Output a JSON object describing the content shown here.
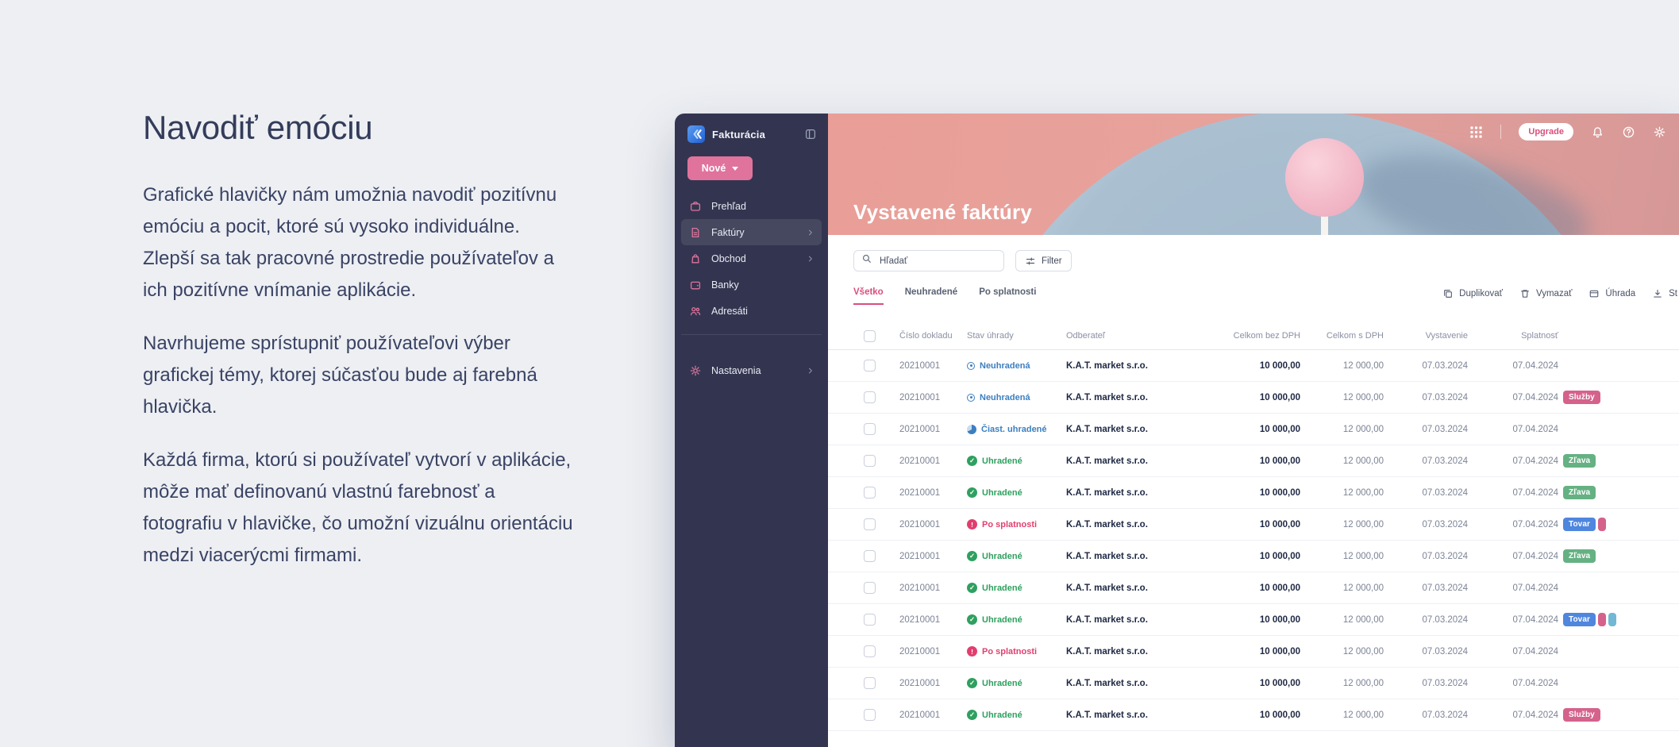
{
  "intro": {
    "heading": "Navodiť emóciu",
    "paragraphs": [
      "Grafické hlavičky nám umožnia navodiť pozitívnu emóciu a pocit, ktoré sú vysoko individuálne. Zlepší sa tak pracovné prostredie používateľov a ich pozitívne vnímanie aplikácie.",
      "Navrhujeme sprístupniť používateľovi výber grafickej témy, ktorej súčasťou bude aj farebná hlavička.",
      "Každá firma, ktorú si používateľ vytvorí v aplikácie, môže mať definovanú vlastnú farebnosť a fotografiu v hlavičke, čo umožní vizuálnu orientáciu medzi viacerýcmi firmami."
    ]
  },
  "app": {
    "name": "Fakturácia",
    "colors": {
      "accent_pink": "#e0739c",
      "tab_pink": "#d94f7e",
      "sidebar_bg": "#333550",
      "status_blue": "#3c7fc0",
      "status_green": "#2fa05f",
      "status_red": "#e13e6f"
    },
    "sidebar": {
      "new_button": {
        "label": "Nové",
        "icon": "caret-down-icon"
      },
      "items": [
        {
          "label": "Prehľad",
          "icon": "overview-icon",
          "chevron": false,
          "active": false
        },
        {
          "label": "Faktúry",
          "icon": "invoices-icon",
          "chevron": true,
          "active": true
        },
        {
          "label": "Obchod",
          "icon": "shop-icon",
          "chevron": true,
          "active": false
        },
        {
          "label": "Banky",
          "icon": "banks-icon",
          "chevron": false,
          "active": false
        },
        {
          "label": "Adresáti",
          "icon": "contacts-icon",
          "chevron": false,
          "active": false
        }
      ],
      "settings": {
        "label": "Nastavenia",
        "icon": "settings-icon",
        "chevron": true
      }
    },
    "header": {
      "title": "Vystavené faktúry",
      "upgrade_label": "Upgrade",
      "icons_left_of_upgrade": [
        "apps-grid-icon"
      ],
      "icons_right_of_upgrade": [
        "bell-icon",
        "help-icon",
        "gear-icon"
      ]
    },
    "toolbar": {
      "search_placeholder": "Hľadať",
      "filter_label": "Filter"
    },
    "tabs": [
      {
        "label": "Všetko",
        "active": true
      },
      {
        "label": "Neuhradené",
        "active": false
      },
      {
        "label": "Po splatnosti",
        "active": false
      }
    ],
    "actions": [
      {
        "label": "Duplikovať",
        "icon": "copy-icon"
      },
      {
        "label": "Vymazať",
        "icon": "trash-icon"
      },
      {
        "label": "Úhrada",
        "icon": "payment-icon"
      },
      {
        "label": "St",
        "icon": "download-icon"
      }
    ],
    "table": {
      "columns": [
        "Číslo dokladu",
        "Stav úhrady",
        "Odberateľ",
        "Celkom bez DPH",
        "Celkom s DPH",
        "Vystavenie",
        "Splatnosť"
      ],
      "statuses": {
        "neuhradena": {
          "label": "Neuhradená",
          "color": "#3c7fc0",
          "icon": "status-ring-icon"
        },
        "ciast_uhradene": {
          "label": "Čiast. uhradené",
          "color": "#3c7fc0",
          "icon": "status-partial-icon"
        },
        "uhradene": {
          "label": "Uhradené",
          "color": "#2fa05f",
          "icon": "status-check-icon"
        },
        "po_splatnosti": {
          "label": "Po splatnosti",
          "color": "#e13e6f",
          "icon": "status-alert-icon"
        }
      },
      "tags": {
        "sluzby": {
          "label": "Služby",
          "color": "#d5628b"
        },
        "zlava": {
          "label": "Zľava",
          "color": "#65b183"
        },
        "tovar": {
          "label": "Tovar",
          "color": "#4f86de"
        },
        "chip_pink": {
          "label": "",
          "color": "#d5628b"
        },
        "chip_teal": {
          "label": "",
          "color": "#72b8d4"
        }
      },
      "rows": [
        {
          "number": "20210001",
          "status": "neuhradena",
          "customer": "K.A.T. market s.r.o.",
          "net": "10 000,00",
          "gross": "12 000,00",
          "issued": "07.03.2024",
          "due": "07.04.2024",
          "tags": []
        },
        {
          "number": "20210001",
          "status": "neuhradena",
          "customer": "K.A.T. market s.r.o.",
          "net": "10 000,00",
          "gross": "12 000,00",
          "issued": "07.03.2024",
          "due": "07.04.2024",
          "tags": [
            "sluzby"
          ]
        },
        {
          "number": "20210001",
          "status": "ciast_uhradene",
          "customer": "K.A.T. market s.r.o.",
          "net": "10 000,00",
          "gross": "12 000,00",
          "issued": "07.03.2024",
          "due": "07.04.2024",
          "tags": []
        },
        {
          "number": "20210001",
          "status": "uhradene",
          "customer": "K.A.T. market s.r.o.",
          "net": "10 000,00",
          "gross": "12 000,00",
          "issued": "07.03.2024",
          "due": "07.04.2024",
          "tags": [
            "zlava"
          ]
        },
        {
          "number": "20210001",
          "status": "uhradene",
          "customer": "K.A.T. market s.r.o.",
          "net": "10 000,00",
          "gross": "12 000,00",
          "issued": "07.03.2024",
          "due": "07.04.2024",
          "tags": [
            "zlava"
          ]
        },
        {
          "number": "20210001",
          "status": "po_splatnosti",
          "customer": "K.A.T. market s.r.o.",
          "net": "10 000,00",
          "gross": "12 000,00",
          "issued": "07.03.2024",
          "due": "07.04.2024",
          "tags": [
            "tovar",
            "chip_pink"
          ]
        },
        {
          "number": "20210001",
          "status": "uhradene",
          "customer": "K.A.T. market s.r.o.",
          "net": "10 000,00",
          "gross": "12 000,00",
          "issued": "07.03.2024",
          "due": "07.04.2024",
          "tags": [
            "zlava"
          ]
        },
        {
          "number": "20210001",
          "status": "uhradene",
          "customer": "K.A.T. market s.r.o.",
          "net": "10 000,00",
          "gross": "12 000,00",
          "issued": "07.03.2024",
          "due": "07.04.2024",
          "tags": []
        },
        {
          "number": "20210001",
          "status": "uhradene",
          "customer": "K.A.T. market s.r.o.",
          "net": "10 000,00",
          "gross": "12 000,00",
          "issued": "07.03.2024",
          "due": "07.04.2024",
          "tags": [
            "tovar",
            "chip_pink",
            "chip_teal"
          ]
        },
        {
          "number": "20210001",
          "status": "po_splatnosti",
          "customer": "K.A.T. market s.r.o.",
          "net": "10 000,00",
          "gross": "12 000,00",
          "issued": "07.03.2024",
          "due": "07.04.2024",
          "tags": []
        },
        {
          "number": "20210001",
          "status": "uhradene",
          "customer": "K.A.T. market s.r.o.",
          "net": "10 000,00",
          "gross": "12 000,00",
          "issued": "07.03.2024",
          "due": "07.04.2024",
          "tags": []
        },
        {
          "number": "20210001",
          "status": "uhradene",
          "customer": "K.A.T. market s.r.o.",
          "net": "10 000,00",
          "gross": "12 000,00",
          "issued": "07.03.2024",
          "due": "07.04.2024",
          "tags": [
            "sluzby"
          ]
        }
      ]
    }
  }
}
